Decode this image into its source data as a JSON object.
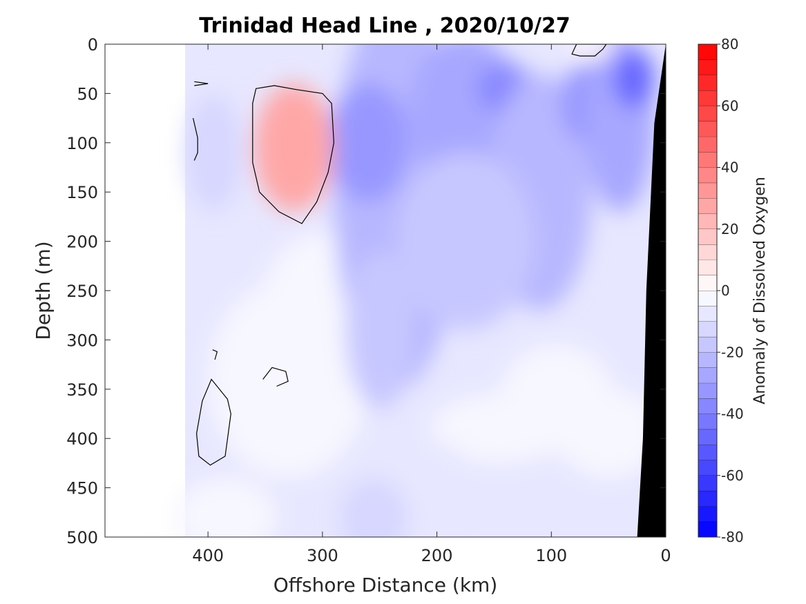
{
  "chart_data": {
    "type": "heatmap",
    "title": "Trinidad Head Line , 2020/10/27",
    "xlabel": "Offshore Distance (km)",
    "ylabel": "Depth (m)",
    "colorbar_label": "Anomaly of Dissolved Oxygen",
    "xlim": [
      490,
      0
    ],
    "ylim": [
      500,
      0
    ],
    "x_reversed": true,
    "y_reversed": true,
    "xticks": [
      400,
      300,
      200,
      100,
      0
    ],
    "xtick_labels": [
      "400",
      "300",
      "200",
      "100",
      "0"
    ],
    "yticks": [
      0,
      50,
      100,
      150,
      200,
      250,
      300,
      350,
      400,
      450,
      500
    ],
    "ytick_labels": [
      "0",
      "50",
      "100",
      "150",
      "200",
      "250",
      "300",
      "350",
      "400",
      "450",
      "500"
    ],
    "colorbar": {
      "range": [
        -80,
        80
      ],
      "ticks": [
        80,
        60,
        40,
        20,
        0,
        -20,
        -40,
        -60,
        -80
      ],
      "tick_labels": [
        "80",
        "60",
        "40",
        "20",
        "0",
        "-20",
        "-40",
        "-60",
        "-80"
      ],
      "levels": 32,
      "colormap": "blue-white-red",
      "low_color": "#0000ff",
      "mid_color": "#ffffff",
      "high_color": "#ff0000"
    },
    "data_coverage": {
      "x_max_km": 420,
      "seafloor_color": "#000000",
      "seafloor_profile": [
        {
          "distance_km": 0,
          "depth_m": 0
        },
        {
          "distance_km": 10,
          "depth_m": 80
        },
        {
          "distance_km": 17,
          "depth_m": 250
        },
        {
          "distance_km": 20,
          "depth_m": 400
        },
        {
          "distance_km": 25,
          "depth_m": 500
        }
      ]
    },
    "features": [
      {
        "kind": "positive anomaly core",
        "distance_km": 320,
        "depth_m": 100,
        "value": 30
      },
      {
        "kind": "negative anomaly core",
        "distance_km": 250,
        "depth_m": 120,
        "value": -45
      },
      {
        "kind": "negative anomaly core",
        "distance_km": 140,
        "depth_m": 40,
        "value": -45
      },
      {
        "kind": "negative anomaly core",
        "distance_km": 75,
        "depth_m": 50,
        "value": -40
      },
      {
        "kind": "negative anomaly core",
        "distance_km": 25,
        "depth_m": 35,
        "value": -55
      },
      {
        "kind": "positive anomaly patch",
        "distance_km": 65,
        "depth_m": 5,
        "value": 5
      }
    ],
    "zero_contours": [
      [
        [
          358,
          45
        ],
        [
          342,
          42
        ],
        [
          323,
          46
        ],
        [
          300,
          50
        ],
        [
          292,
          60
        ],
        [
          290,
          100
        ],
        [
          295,
          130
        ],
        [
          305,
          160
        ],
        [
          318,
          182
        ],
        [
          338,
          170
        ],
        [
          355,
          150
        ],
        [
          361,
          120
        ],
        [
          361,
          60
        ]
      ],
      [
        [
          82,
          10
        ],
        [
          75,
          12
        ],
        [
          62,
          12
        ],
        [
          55,
          5
        ],
        [
          52,
          0
        ],
        [
          78,
          0
        ]
      ],
      [
        [
          352,
          340
        ],
        [
          344,
          328
        ],
        [
          332,
          332
        ],
        [
          330,
          342
        ],
        [
          340,
          347
        ]
      ],
      [
        [
          397,
          340
        ],
        [
          405,
          362
        ],
        [
          410,
          395
        ],
        [
          408,
          418
        ],
        [
          398,
          427
        ],
        [
          385,
          418
        ],
        [
          380,
          375
        ],
        [
          383,
          360
        ]
      ],
      [
        [
          396,
          310
        ],
        [
          392,
          312
        ],
        [
          394,
          320
        ]
      ],
      [
        [
          413,
          75
        ],
        [
          409,
          95
        ],
        [
          409,
          110
        ],
        [
          412,
          118
        ]
      ],
      [
        [
          412,
          38
        ],
        [
          400,
          40
        ],
        [
          412,
          42
        ]
      ]
    ]
  }
}
